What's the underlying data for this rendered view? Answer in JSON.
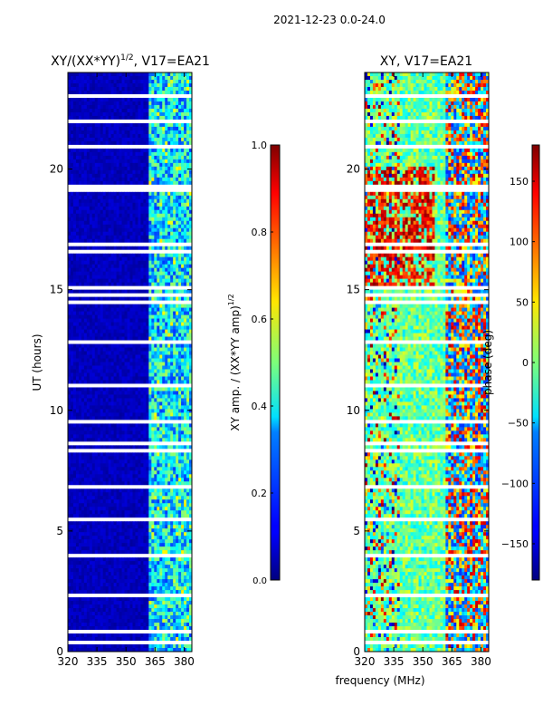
{
  "header": {
    "title": "2021-12-23 0.0-24.0"
  },
  "chart_data": [
    {
      "type": "heatmap",
      "title": "XY/(XX*YY)",
      "title_exponent": "1/2",
      "title_suffix": ", V17=EA21",
      "xlabel": "",
      "ylabel": "UT (hours)",
      "x_ticks": [
        "320",
        "335",
        "350",
        "365",
        "380"
      ],
      "x_tick_values": [
        320,
        335,
        350,
        365,
        380
      ],
      "xlim": [
        320,
        384
      ],
      "y_ticks": [
        "0",
        "5",
        "10",
        "15",
        "20"
      ],
      "y_tick_values": [
        0,
        5,
        10,
        15,
        20
      ],
      "ylim": [
        0,
        24
      ],
      "colorbar": {
        "label": "XY amp. / (XX*YY amp)",
        "label_exponent": "1/2",
        "range": [
          0.0,
          1.0
        ],
        "tick_values": [
          0.0,
          0.2,
          0.4,
          0.6,
          0.8,
          1.0
        ],
        "ticks": [
          "0.0",
          "0.2",
          "0.4",
          "0.6",
          "0.8",
          "1.0"
        ]
      }
    },
    {
      "type": "heatmap",
      "title": "XY, V17=EA21",
      "xlabel": "frequency (MHz)",
      "ylabel": "",
      "x_ticks": [
        "320",
        "335",
        "350",
        "365",
        "380"
      ],
      "x_tick_values": [
        320,
        335,
        350,
        365,
        380
      ],
      "xlim": [
        320,
        384
      ],
      "y_ticks": [
        "0",
        "5",
        "10",
        "15",
        "20"
      ],
      "y_tick_values": [
        0,
        5,
        10,
        15,
        20
      ],
      "ylim": [
        0,
        24
      ],
      "colorbar": {
        "label": "phase (deg)",
        "range": [
          -180,
          180
        ],
        "tick_values": [
          -150,
          -100,
          -50,
          0,
          50,
          100,
          150
        ],
        "ticks": [
          "−150",
          "−100",
          "−50",
          "0",
          "50",
          "100",
          "150"
        ]
      }
    }
  ]
}
